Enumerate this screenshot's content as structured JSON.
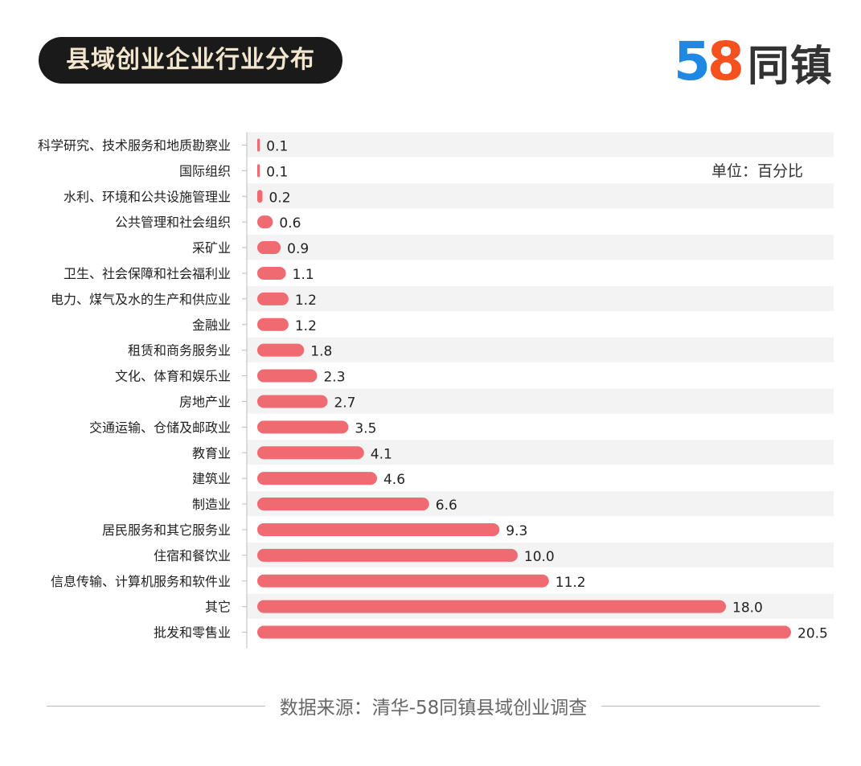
{
  "header": {
    "title": "县域创业企业行业分布",
    "logo": {
      "digit_a": "5",
      "digit_b": "8",
      "text": "同镇"
    }
  },
  "unit_label": "单位：百分比",
  "source": "数据来源：清华-58同镇县域创业调查",
  "colors": {
    "bar": "#f06a72",
    "row_band": "#f3f3f3",
    "axis": "#bdbdbd",
    "logo_5": "#1e88e5",
    "logo_8": "#f4511e"
  },
  "chart_data": {
    "type": "bar",
    "orientation": "horizontal",
    "categories": [
      "科学研究、技术服务和地质勘察业",
      "国际组织",
      "水利、环境和公共设施管理业",
      "公共管理和社会组织",
      "采矿业",
      "卫生、社会保障和社会福利业",
      "电力、煤气及水的生产和供应业",
      "金融业",
      "租赁和商务服务业",
      "文化、体育和娱乐业",
      "房地产业",
      "交通运输、仓储及邮政业",
      "教育业",
      "建筑业",
      "制造业",
      "居民服务和其它服务业",
      "住宿和餐饮业",
      "信息传输、计算机服务和软件业",
      "其它",
      "批发和零售业"
    ],
    "values": [
      0.1,
      0.1,
      0.2,
      0.6,
      0.9,
      1.1,
      1.2,
      1.2,
      1.8,
      2.3,
      2.7,
      3.5,
      4.1,
      4.6,
      6.6,
      9.3,
      10.0,
      11.2,
      18.0,
      20.5
    ],
    "value_labels": [
      "0.1",
      "0.1",
      "0.2",
      "0.6",
      "0.9",
      "1.1",
      "1.2",
      "1.2",
      "1.8",
      "2.3",
      "2.7",
      "3.5",
      "4.1",
      "4.6",
      "6.6",
      "9.3",
      "10.0",
      "11.2",
      "18.0",
      "20.5"
    ],
    "xlim": [
      0,
      20.5
    ],
    "data_labels": true,
    "grid": false
  }
}
